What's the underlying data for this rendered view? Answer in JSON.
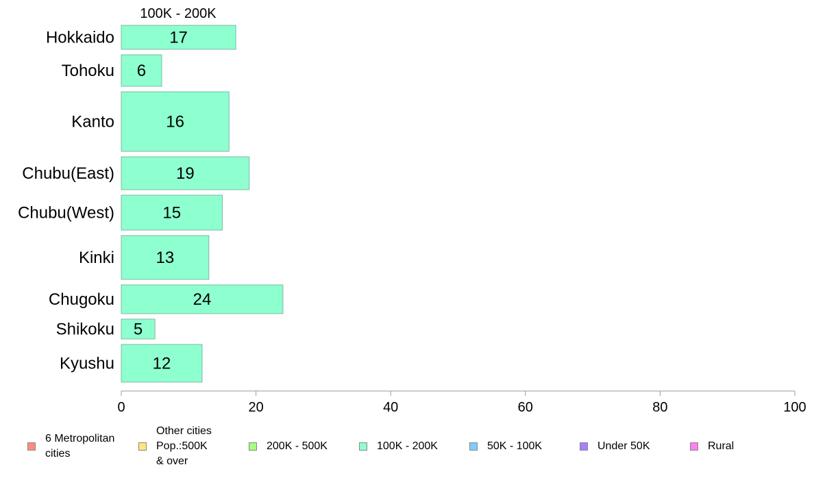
{
  "chart_data": {
    "type": "bar",
    "orientation": "horizontal",
    "title": "100K - 200K",
    "categories": [
      "Hokkaido",
      "Tohoku",
      "Kanto",
      "Chubu(East)",
      "Chubu(West)",
      "Kinki",
      "Chugoku",
      "Shikoku",
      "Kyushu"
    ],
    "series": [
      {
        "name": "100K - 200K",
        "values": [
          17,
          6,
          16,
          19,
          15,
          13,
          24,
          5,
          12
        ],
        "color": "#8effcf"
      }
    ],
    "data_labels": [
      "17",
      "6",
      "16",
      "19",
      "15",
      "13",
      "24",
      "5",
      "12"
    ],
    "xlim": [
      0,
      100
    ],
    "xticks": [
      0,
      20,
      40,
      60,
      80,
      100
    ],
    "xtick_labels": [
      "0",
      "20",
      "40",
      "60",
      "80",
      "100"
    ],
    "grid": false,
    "legend_position": "bottom",
    "legend": [
      {
        "label": "6 Metropolitan\n cities",
        "color": "#ff8c80"
      },
      {
        "label": "Other cities\nPop.:500K\n & over",
        "color": "#ffe680"
      },
      {
        "label": "200K - 500K",
        "color": "#a6ff80"
      },
      {
        "label": "100K - 200K",
        "color": "#8effcf"
      },
      {
        "label": "50K - 100K",
        "color": "#80ccff"
      },
      {
        "label": "Under 50K",
        "color": "#a680ff"
      },
      {
        "label": "Rural",
        "color": "#ff80ee"
      }
    ]
  }
}
